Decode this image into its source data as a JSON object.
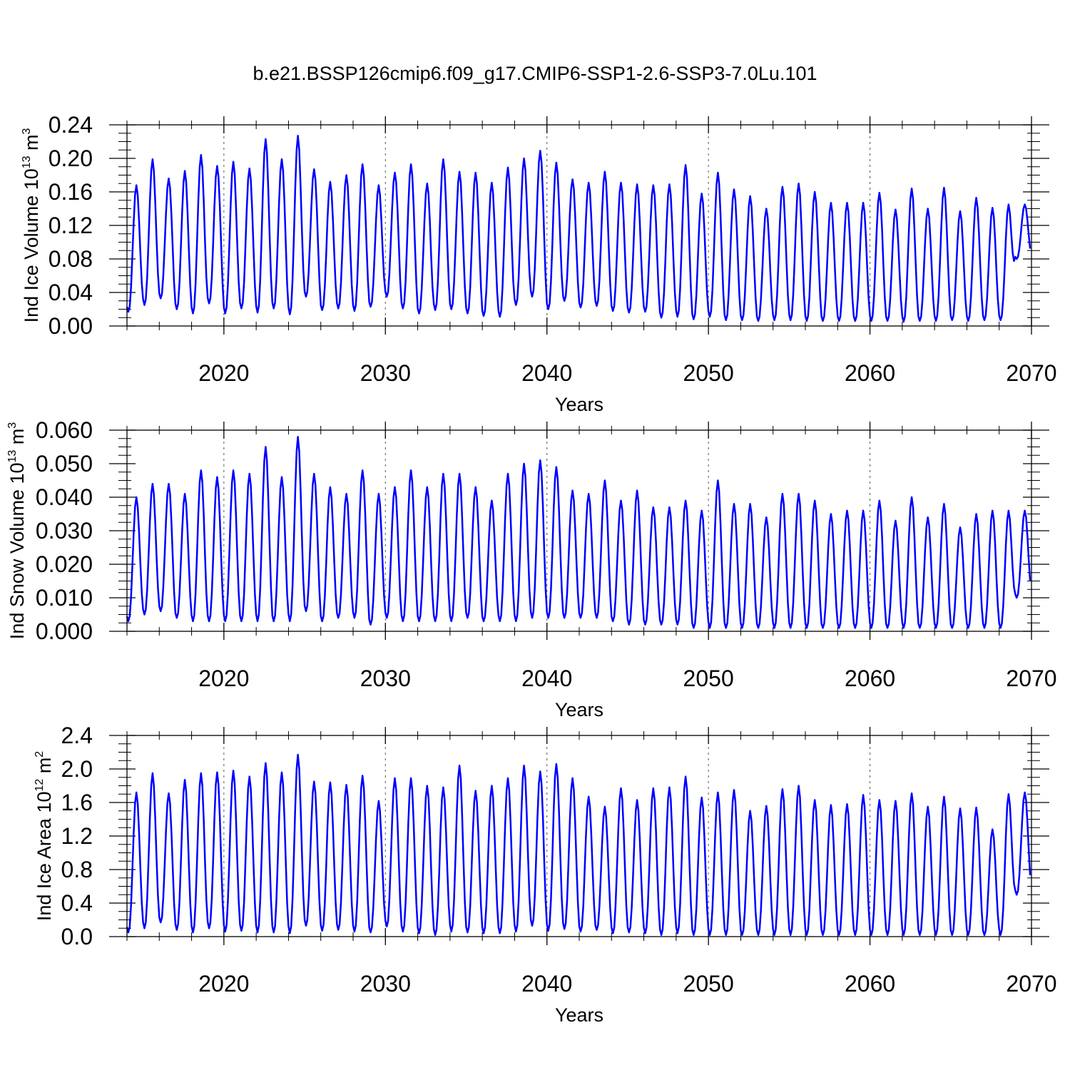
{
  "title": "b.e21.BSSP126cmip6.f09_g17.CMIP6-SSP1-2.6-SSP3-7.0Lu.101",
  "line_color": "#0000ff",
  "chart_data": [
    {
      "type": "line",
      "id": "ice-volume",
      "title": "b.e21.BSSP126cmip6.f09_g17.CMIP6-SSP1-2.6-SSP3-7.0Lu.101",
      "xlabel": "Years",
      "ylabel": {
        "text": "Ind Ice Volume 10",
        "exp": "13",
        "unit": " m",
        "unit_exp": "3"
      },
      "xlim": [
        2014,
        2070
      ],
      "ylim": [
        0,
        0.24
      ],
      "xticks": [
        "2020",
        "2030",
        "2040",
        "2050",
        "2060",
        "2070"
      ],
      "xtick_values": [
        2020,
        2030,
        2040,
        2050,
        2060,
        2070
      ],
      "yticks": [
        "0.00",
        "0.04",
        "0.08",
        "0.12",
        "0.16",
        "0.20",
        "0.24"
      ],
      "ytick_values": [
        0,
        0.04,
        0.08,
        0.12,
        0.16,
        0.2,
        0.24
      ],
      "series": [
        {
          "name": "Ind Ice Volume",
          "start_year": 2014,
          "annual_max": [
            0.168,
            0.199,
            0.176,
            0.185,
            0.204,
            0.191,
            0.196,
            0.188,
            0.223,
            0.199,
            0.227,
            0.187,
            0.172,
            0.18,
            0.193,
            0.168,
            0.183,
            0.193,
            0.17,
            0.199,
            0.184,
            0.183,
            0.171,
            0.189,
            0.2,
            0.209,
            0.195,
            0.175,
            0.171,
            0.184,
            0.171,
            0.169,
            0.168,
            0.169,
            0.192,
            0.158,
            0.183,
            0.163,
            0.155,
            0.14,
            0.166,
            0.17,
            0.16,
            0.147,
            0.147,
            0.147,
            0.159,
            0.139,
            0.164,
            0.14,
            0.165,
            0.137,
            0.153,
            0.141,
            0.145,
            0.145
          ],
          "annual_min": [
            0.017,
            0.025,
            0.033,
            0.02,
            0.015,
            0.027,
            0.015,
            0.021,
            0.016,
            0.021,
            0.014,
            0.035,
            0.019,
            0.021,
            0.018,
            0.023,
            0.035,
            0.021,
            0.015,
            0.019,
            0.02,
            0.015,
            0.012,
            0.011,
            0.025,
            0.035,
            0.02,
            0.03,
            0.022,
            0.024,
            0.018,
            0.016,
            0.017,
            0.01,
            0.011,
            0.008,
            0.011,
            0.007,
            0.007,
            0.006,
            0.007,
            0.007,
            0.006,
            0.006,
            0.006,
            0.006,
            0.006,
            0.006,
            0.005,
            0.006,
            0.006,
            0.007,
            0.006,
            0.007,
            0.007,
            0.08
          ]
        }
      ]
    },
    {
      "type": "line",
      "id": "snow-volume",
      "xlabel": "Years",
      "ylabel": {
        "text": "Ind Snow Volume 10",
        "exp": "13",
        "unit": " m",
        "unit_exp": "3"
      },
      "xlim": [
        2014,
        2070
      ],
      "ylim": [
        0,
        0.06
      ],
      "xticks": [
        "2020",
        "2030",
        "2040",
        "2050",
        "2060",
        "2070"
      ],
      "xtick_values": [
        2020,
        2030,
        2040,
        2050,
        2060,
        2070
      ],
      "yticks": [
        "0.000",
        "0.010",
        "0.020",
        "0.030",
        "0.040",
        "0.050",
        "0.060"
      ],
      "ytick_values": [
        0,
        0.01,
        0.02,
        0.03,
        0.04,
        0.05,
        0.06
      ],
      "series": [
        {
          "name": "Ind Snow Volume",
          "start_year": 2014,
          "annual_max": [
            0.04,
            0.044,
            0.044,
            0.041,
            0.048,
            0.046,
            0.048,
            0.047,
            0.055,
            0.046,
            0.058,
            0.047,
            0.043,
            0.041,
            0.048,
            0.041,
            0.043,
            0.048,
            0.043,
            0.047,
            0.047,
            0.043,
            0.039,
            0.047,
            0.05,
            0.051,
            0.049,
            0.042,
            0.041,
            0.045,
            0.039,
            0.042,
            0.037,
            0.037,
            0.039,
            0.036,
            0.045,
            0.038,
            0.038,
            0.034,
            0.041,
            0.041,
            0.039,
            0.035,
            0.036,
            0.036,
            0.039,
            0.033,
            0.04,
            0.034,
            0.038,
            0.031,
            0.035,
            0.036,
            0.036,
            0.036
          ],
          "annual_min": [
            0.003,
            0.005,
            0.006,
            0.004,
            0.003,
            0.003,
            0.003,
            0.003,
            0.003,
            0.003,
            0.003,
            0.006,
            0.003,
            0.004,
            0.004,
            0.002,
            0.004,
            0.003,
            0.003,
            0.003,
            0.003,
            0.004,
            0.003,
            0.003,
            0.003,
            0.004,
            0.004,
            0.004,
            0.004,
            0.004,
            0.003,
            0.002,
            0.002,
            0.002,
            0.002,
            0.001,
            0.001,
            0.001,
            0.001,
            0.001,
            0.001,
            0.001,
            0.001,
            0.001,
            0.001,
            0.001,
            0.001,
            0.001,
            0.001,
            0.001,
            0.001,
            0.001,
            0.001,
            0.001,
            0.001,
            0.01
          ]
        }
      ]
    },
    {
      "type": "line",
      "id": "ice-area",
      "xlabel": "Years",
      "ylabel": {
        "text": "Ind Ice Area 10",
        "exp": "12",
        "unit": " m",
        "unit_exp": "2"
      },
      "xlim": [
        2014,
        2070
      ],
      "ylim": [
        0,
        2.4
      ],
      "xticks": [
        "2020",
        "2030",
        "2040",
        "2050",
        "2060",
        "2070"
      ],
      "xtick_values": [
        2020,
        2030,
        2040,
        2050,
        2060,
        2070
      ],
      "yticks": [
        "0.0",
        "0.4",
        "0.8",
        "1.2",
        "1.6",
        "2.0",
        "2.4"
      ],
      "ytick_values": [
        0,
        0.4,
        0.8,
        1.2,
        1.6,
        2.0,
        2.4
      ],
      "series": [
        {
          "name": "Ind Ice Area",
          "start_year": 2014,
          "annual_max": [
            1.72,
            1.95,
            1.71,
            1.87,
            1.95,
            1.96,
            1.98,
            1.91,
            2.07,
            1.96,
            2.17,
            1.85,
            1.84,
            1.81,
            1.92,
            1.62,
            1.89,
            1.89,
            1.8,
            1.78,
            2.04,
            1.74,
            1.8,
            1.89,
            2.04,
            1.97,
            2.06,
            1.89,
            1.67,
            1.55,
            1.77,
            1.63,
            1.77,
            1.78,
            1.91,
            1.66,
            1.72,
            1.75,
            1.5,
            1.56,
            1.76,
            1.8,
            1.63,
            1.57,
            1.58,
            1.69,
            1.63,
            1.62,
            1.71,
            1.55,
            1.67,
            1.53,
            1.54,
            1.28,
            1.7,
            1.72
          ],
          "annual_min": [
            0.05,
            0.1,
            0.17,
            0.08,
            0.05,
            0.1,
            0.06,
            0.07,
            0.05,
            0.05,
            0.04,
            0.13,
            0.07,
            0.08,
            0.06,
            0.05,
            0.12,
            0.06,
            0.04,
            0.02,
            0.06,
            0.05,
            0.04,
            0.04,
            0.06,
            0.13,
            0.07,
            0.09,
            0.06,
            0.08,
            0.04,
            0.05,
            0.04,
            0.02,
            0.04,
            0.02,
            0.02,
            0.02,
            0.02,
            0.02,
            0.02,
            0.02,
            0.02,
            0.02,
            0.02,
            0.02,
            0.02,
            0.02,
            0.02,
            0.02,
            0.02,
            0.02,
            0.02,
            0.02,
            0.02,
            0.5
          ]
        }
      ]
    }
  ]
}
